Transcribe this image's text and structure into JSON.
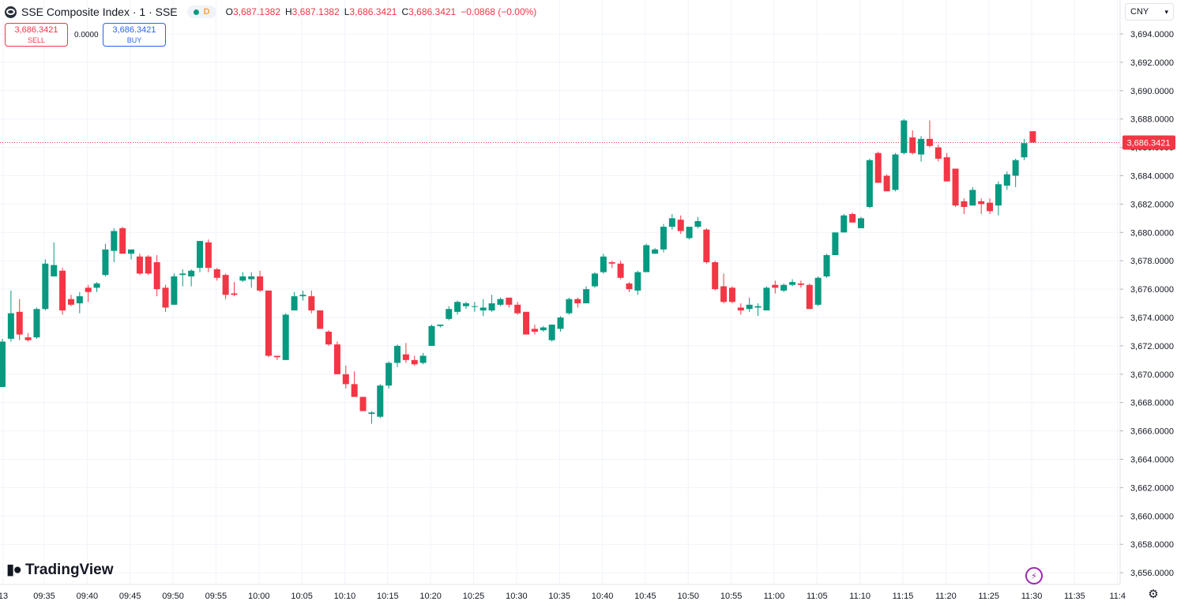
{
  "header": {
    "symbol_title": "SSE Composite Index · 1 · SSE",
    "badge": "D",
    "ohlc": {
      "o_label": "O",
      "o": "3,687.1382",
      "h_label": "H",
      "h": "3,687.1382",
      "l_label": "L",
      "l": "3,686.3421",
      "c_label": "C",
      "c": "3,686.3421",
      "change": "−0.0868 (−0.00%)"
    }
  },
  "trade": {
    "sell_price": "3,686.3421",
    "sell_label": "SELL",
    "spread": "0.0000",
    "buy_price": "3,686.3421",
    "buy_label": "BUY"
  },
  "currency": "CNY",
  "logo_text": "TradingView",
  "colors": {
    "up": "#089981",
    "down": "#f23645",
    "grid": "#f0f3fa",
    "price_line": "#f23645"
  },
  "icons": [
    "symbol-logo-icon",
    "chevron-down-icon",
    "bolt-icon",
    "gear-icon"
  ],
  "chart_data": {
    "type": "candlestick",
    "last_price": 3686.3421,
    "last_price_label": "3,686.3421",
    "y_ticks": [
      "3,694.0000",
      "3,692.0000",
      "3,690.0000",
      "3,688.0000",
      "3,686.0000",
      "3,684.0000",
      "3,682.0000",
      "3,680.0000",
      "3,678.0000",
      "3,676.0000",
      "3,674.0000",
      "3,672.0000",
      "3,670.0000",
      "3,668.0000",
      "3,666.0000",
      "3,664.0000",
      "3,662.0000",
      "3,660.0000",
      "3,658.0000",
      "3,656.0000"
    ],
    "x_ticks": [
      "13",
      "09:35",
      "09:40",
      "09:45",
      "09:50",
      "09:55",
      "10:00",
      "10:05",
      "10:10",
      "10:15",
      "10:20",
      "10:25",
      "10:30",
      "10:35",
      "10:40",
      "10:45",
      "10:50",
      "10:55",
      "11:00",
      "11:05",
      "11:10",
      "11:15",
      "11:20",
      "11:25",
      "11:30",
      "11:35",
      "11:4"
    ],
    "ylim": [
      3655.2,
      3696.2
    ],
    "candles": [
      {
        "t": "09:31",
        "o": 3669.1,
        "h": 3672.5,
        "l": 3669.1,
        "c": 3672.3
      },
      {
        "t": "09:32",
        "o": 3672.5,
        "h": 3675.9,
        "l": 3672.3,
        "c": 3674.3
      },
      {
        "t": "09:33",
        "o": 3674.4,
        "h": 3675.3,
        "l": 3672.4,
        "c": 3672.8
      },
      {
        "t": "09:34",
        "o": 3672.6,
        "h": 3672.9,
        "l": 3672.3,
        "c": 3672.4
      },
      {
        "t": "09:35",
        "o": 3672.6,
        "h": 3674.7,
        "l": 3672.5,
        "c": 3674.6
      },
      {
        "t": "09:36",
        "o": 3674.6,
        "h": 3678.1,
        "l": 3674.5,
        "c": 3677.8
      },
      {
        "t": "09:37",
        "o": 3676.9,
        "h": 3679.3,
        "l": 3676.9,
        "c": 3677.7
      },
      {
        "t": "09:38",
        "o": 3677.3,
        "h": 3677.5,
        "l": 3674.2,
        "c": 3674.5
      },
      {
        "t": "09:39",
        "o": 3675.3,
        "h": 3675.6,
        "l": 3674.8,
        "c": 3674.9
      },
      {
        "t": "09:40",
        "o": 3675.0,
        "h": 3675.8,
        "l": 3674.3,
        "c": 3675.5
      },
      {
        "t": "09:41",
        "o": 3676.1,
        "h": 3676.3,
        "l": 3675.1,
        "c": 3675.8
      },
      {
        "t": "09:42",
        "o": 3676.1,
        "h": 3676.5,
        "l": 3675.8,
        "c": 3676.4
      },
      {
        "t": "09:43",
        "o": 3677.0,
        "h": 3679.2,
        "l": 3676.9,
        "c": 3678.8
      },
      {
        "t": "09:44",
        "o": 3678.7,
        "h": 3680.3,
        "l": 3677.9,
        "c": 3680.1
      },
      {
        "t": "09:45",
        "o": 3680.3,
        "h": 3680.4,
        "l": 3678.5,
        "c": 3678.5
      },
      {
        "t": "09:46",
        "o": 3678.5,
        "h": 3678.7,
        "l": 3678.1,
        "c": 3678.8
      },
      {
        "t": "09:47",
        "o": 3678.3,
        "h": 3678.5,
        "l": 3677.0,
        "c": 3677.1
      },
      {
        "t": "09:48",
        "o": 3678.3,
        "h": 3678.4,
        "l": 3677.0,
        "c": 3677.1
      },
      {
        "t": "09:49",
        "o": 3677.9,
        "h": 3678.4,
        "l": 3675.5,
        "c": 3676.0
      },
      {
        "t": "09:50",
        "o": 3676.1,
        "h": 3676.3,
        "l": 3674.4,
        "c": 3674.7
      },
      {
        "t": "09:51",
        "o": 3674.9,
        "h": 3677.1,
        "l": 3674.9,
        "c": 3676.9
      },
      {
        "t": "09:52",
        "o": 3677.0,
        "h": 3677.4,
        "l": 3676.2,
        "c": 3677.1
      },
      {
        "t": "09:53",
        "o": 3676.9,
        "h": 3677.4,
        "l": 3676.2,
        "c": 3677.3
      },
      {
        "t": "09:54",
        "o": 3677.5,
        "h": 3679.4,
        "l": 3677.2,
        "c": 3679.4
      },
      {
        "t": "09:55",
        "o": 3679.3,
        "h": 3679.5,
        "l": 3677.2,
        "c": 3677.5
      },
      {
        "t": "09:56",
        "o": 3677.4,
        "h": 3677.5,
        "l": 3676.6,
        "c": 3676.8
      },
      {
        "t": "09:57",
        "o": 3677.0,
        "h": 3677.1,
        "l": 3675.3,
        "c": 3675.6
      },
      {
        "t": "09:58",
        "o": 3675.7,
        "h": 3676.5,
        "l": 3675.5,
        "c": 3675.6
      },
      {
        "t": "09:59",
        "o": 3676.6,
        "h": 3677.2,
        "l": 3676.5,
        "c": 3676.9
      },
      {
        "t": "10:00",
        "o": 3676.7,
        "h": 3677.2,
        "l": 3676.1,
        "c": 3676.9
      },
      {
        "t": "10:01",
        "o": 3676.9,
        "h": 3677.3,
        "l": 3675.8,
        "c": 3675.9
      },
      {
        "t": "10:02",
        "o": 3675.9,
        "h": 3675.9,
        "l": 3671.2,
        "c": 3671.3
      },
      {
        "t": "10:03",
        "o": 3671.3,
        "h": 3671.3,
        "l": 3671.0,
        "c": 3671.2
      },
      {
        "t": "10:04",
        "o": 3671.0,
        "h": 3674.3,
        "l": 3671.0,
        "c": 3674.2
      },
      {
        "t": "10:05",
        "o": 3674.5,
        "h": 3675.8,
        "l": 3674.5,
        "c": 3675.5
      },
      {
        "t": "10:06",
        "o": 3675.5,
        "h": 3675.9,
        "l": 3675.2,
        "c": 3675.6
      },
      {
        "t": "10:07",
        "o": 3675.5,
        "h": 3675.9,
        "l": 3674.3,
        "c": 3674.5
      },
      {
        "t": "10:08",
        "o": 3674.5,
        "h": 3674.5,
        "l": 3673.2,
        "c": 3673.2
      },
      {
        "t": "10:09",
        "o": 3673.0,
        "h": 3673.1,
        "l": 3672.0,
        "c": 3672.1
      },
      {
        "t": "10:10",
        "o": 3672.1,
        "h": 3672.3,
        "l": 3670.0,
        "c": 3670.0
      },
      {
        "t": "10:11",
        "o": 3670.0,
        "h": 3670.6,
        "l": 3669.0,
        "c": 3669.3
      },
      {
        "t": "10:12",
        "o": 3669.3,
        "h": 3670.2,
        "l": 3668.5,
        "c": 3668.4
      },
      {
        "t": "10:13",
        "o": 3668.4,
        "h": 3668.4,
        "l": 3667.4,
        "c": 3667.4
      },
      {
        "t": "10:14",
        "o": 3667.2,
        "h": 3667.4,
        "l": 3666.5,
        "c": 3667.3
      },
      {
        "t": "10:15",
        "o": 3667.0,
        "h": 3669.3,
        "l": 3666.9,
        "c": 3669.2
      },
      {
        "t": "10:16",
        "o": 3669.2,
        "h": 3670.9,
        "l": 3669.0,
        "c": 3670.8
      },
      {
        "t": "10:17",
        "o": 3670.8,
        "h": 3672.1,
        "l": 3670.5,
        "c": 3672.0
      },
      {
        "t": "10:18",
        "o": 3671.4,
        "h": 3672.2,
        "l": 3670.8,
        "c": 3671.0
      },
      {
        "t": "10:19",
        "o": 3671.0,
        "h": 3671.3,
        "l": 3670.6,
        "c": 3670.7
      },
      {
        "t": "10:20",
        "o": 3670.8,
        "h": 3671.5,
        "l": 3670.7,
        "c": 3671.3
      },
      {
        "t": "10:21",
        "o": 3672.0,
        "h": 3673.5,
        "l": 3672.0,
        "c": 3673.4
      },
      {
        "t": "10:22",
        "o": 3673.4,
        "h": 3673.5,
        "l": 3673.3,
        "c": 3673.5
      },
      {
        "t": "10:23",
        "o": 3673.9,
        "h": 3674.8,
        "l": 3673.8,
        "c": 3674.6
      },
      {
        "t": "10:24",
        "o": 3674.4,
        "h": 3675.2,
        "l": 3674.2,
        "c": 3675.1
      },
      {
        "t": "10:25",
        "o": 3674.8,
        "h": 3675.1,
        "l": 3674.6,
        "c": 3675.0
      },
      {
        "t": "10:26",
        "o": 3674.8,
        "h": 3675.1,
        "l": 3674.4,
        "c": 3674.8
      },
      {
        "t": "10:27",
        "o": 3674.5,
        "h": 3675.3,
        "l": 3674.1,
        "c": 3674.7
      },
      {
        "t": "10:28",
        "o": 3674.5,
        "h": 3675.6,
        "l": 3674.4,
        "c": 3675.0
      },
      {
        "t": "10:29",
        "o": 3674.9,
        "h": 3675.4,
        "l": 3674.8,
        "c": 3675.3
      },
      {
        "t": "10:30",
        "o": 3675.4,
        "h": 3675.4,
        "l": 3674.7,
        "c": 3674.9
      },
      {
        "t": "10:31",
        "o": 3674.9,
        "h": 3675.1,
        "l": 3674.2,
        "c": 3674.3
      },
      {
        "t": "10:32",
        "o": 3674.4,
        "h": 3674.4,
        "l": 3672.8,
        "c": 3672.8
      },
      {
        "t": "10:33",
        "o": 3673.2,
        "h": 3673.5,
        "l": 3672.8,
        "c": 3673.0
      },
      {
        "t": "10:34",
        "o": 3673.1,
        "h": 3673.4,
        "l": 3673.0,
        "c": 3673.3
      },
      {
        "t": "10:35",
        "o": 3672.4,
        "h": 3673.4,
        "l": 3672.3,
        "c": 3673.5
      },
      {
        "t": "10:36",
        "o": 3673.2,
        "h": 3674.1,
        "l": 3673.0,
        "c": 3674.0
      },
      {
        "t": "10:37",
        "o": 3674.3,
        "h": 3675.4,
        "l": 3674.2,
        "c": 3675.3
      },
      {
        "t": "10:38",
        "o": 3675.3,
        "h": 3675.4,
        "l": 3674.7,
        "c": 3675.0
      },
      {
        "t": "10:39",
        "o": 3675.0,
        "h": 3676.2,
        "l": 3675.0,
        "c": 3676.0
      },
      {
        "t": "10:40",
        "o": 3676.2,
        "h": 3677.2,
        "l": 3676.1,
        "c": 3677.1
      },
      {
        "t": "10:41",
        "o": 3677.2,
        "h": 3678.5,
        "l": 3677.1,
        "c": 3678.3
      },
      {
        "t": "10:42",
        "o": 3677.9,
        "h": 3678.0,
        "l": 3677.5,
        "c": 3677.8
      },
      {
        "t": "10:43",
        "o": 3677.8,
        "h": 3678.0,
        "l": 3676.7,
        "c": 3676.8
      },
      {
        "t": "10:44",
        "o": 3676.4,
        "h": 3676.5,
        "l": 3675.8,
        "c": 3676.0
      },
      {
        "t": "10:45",
        "o": 3675.9,
        "h": 3677.3,
        "l": 3675.6,
        "c": 3677.2
      },
      {
        "t": "10:46",
        "o": 3677.2,
        "h": 3679.2,
        "l": 3677.2,
        "c": 3679.1
      },
      {
        "t": "10:47",
        "o": 3678.5,
        "h": 3678.9,
        "l": 3678.5,
        "c": 3678.8
      },
      {
        "t": "10:48",
        "o": 3678.8,
        "h": 3680.6,
        "l": 3678.6,
        "c": 3680.4
      },
      {
        "t": "10:49",
        "o": 3680.4,
        "h": 3681.3,
        "l": 3680.2,
        "c": 3681.0
      },
      {
        "t": "10:50",
        "o": 3680.9,
        "h": 3681.2,
        "l": 3679.9,
        "c": 3680.1
      },
      {
        "t": "10:51",
        "o": 3679.6,
        "h": 3680.3,
        "l": 3679.5,
        "c": 3680.4
      },
      {
        "t": "10:52",
        "o": 3680.4,
        "h": 3681.1,
        "l": 3680.3,
        "c": 3680.8
      },
      {
        "t": "10:53",
        "o": 3680.2,
        "h": 3680.3,
        "l": 3677.8,
        "c": 3677.9
      },
      {
        "t": "10:54",
        "o": 3677.9,
        "h": 3678.0,
        "l": 3675.9,
        "c": 3676.0
      },
      {
        "t": "10:55",
        "o": 3676.2,
        "h": 3677.1,
        "l": 3675.0,
        "c": 3675.1
      },
      {
        "t": "10:56",
        "o": 3676.1,
        "h": 3676.2,
        "l": 3675.0,
        "c": 3675.1
      },
      {
        "t": "10:57",
        "o": 3674.7,
        "h": 3675.0,
        "l": 3674.2,
        "c": 3674.5
      },
      {
        "t": "10:58",
        "o": 3674.6,
        "h": 3675.4,
        "l": 3674.4,
        "c": 3674.9
      },
      {
        "t": "10:59",
        "o": 3674.7,
        "h": 3675.0,
        "l": 3674.1,
        "c": 3674.8
      },
      {
        "t": "11:00",
        "o": 3674.5,
        "h": 3676.2,
        "l": 3674.5,
        "c": 3676.1
      },
      {
        "t": "11:01",
        "o": 3676.3,
        "h": 3676.6,
        "l": 3675.7,
        "c": 3676.1
      },
      {
        "t": "11:02",
        "o": 3675.9,
        "h": 3676.4,
        "l": 3675.8,
        "c": 3676.3
      },
      {
        "t": "11:03",
        "o": 3676.3,
        "h": 3676.7,
        "l": 3676.2,
        "c": 3676.5
      },
      {
        "t": "11:04",
        "o": 3676.4,
        "h": 3676.6,
        "l": 3676.1,
        "c": 3676.3
      },
      {
        "t": "11:05",
        "o": 3676.3,
        "h": 3676.4,
        "l": 3674.6,
        "c": 3674.6
      },
      {
        "t": "11:06",
        "o": 3674.9,
        "h": 3676.9,
        "l": 3674.8,
        "c": 3676.8
      },
      {
        "t": "11:07",
        "o": 3676.9,
        "h": 3678.5,
        "l": 3676.8,
        "c": 3678.4
      },
      {
        "t": "11:08",
        "o": 3678.4,
        "h": 3680.0,
        "l": 3678.4,
        "c": 3680.0
      },
      {
        "t": "11:09",
        "o": 3680.0,
        "h": 3681.3,
        "l": 3680.0,
        "c": 3681.2
      },
      {
        "t": "11:10",
        "o": 3681.3,
        "h": 3681.4,
        "l": 3680.7,
        "c": 3680.7
      },
      {
        "t": "11:11",
        "o": 3680.3,
        "h": 3681.1,
        "l": 3680.3,
        "c": 3681.0
      },
      {
        "t": "11:12",
        "o": 3681.8,
        "h": 3685.2,
        "l": 3681.7,
        "c": 3685.1
      },
      {
        "t": "11:13",
        "o": 3685.6,
        "h": 3685.7,
        "l": 3683.5,
        "c": 3683.5
      },
      {
        "t": "11:14",
        "o": 3684.0,
        "h": 3684.1,
        "l": 3682.9,
        "c": 3682.9
      },
      {
        "t": "11:15",
        "o": 3683.0,
        "h": 3685.6,
        "l": 3682.9,
        "c": 3685.5
      },
      {
        "t": "11:16",
        "o": 3685.6,
        "h": 3688.0,
        "l": 3685.5,
        "c": 3687.9
      },
      {
        "t": "11:17",
        "o": 3686.7,
        "h": 3687.2,
        "l": 3685.5,
        "c": 3685.6
      },
      {
        "t": "11:18",
        "o": 3685.5,
        "h": 3686.8,
        "l": 3685.0,
        "c": 3686.6
      },
      {
        "t": "11:19",
        "o": 3686.6,
        "h": 3687.9,
        "l": 3686.0,
        "c": 3686.1
      },
      {
        "t": "11:20",
        "o": 3686.0,
        "h": 3686.2,
        "l": 3685.0,
        "c": 3685.2
      },
      {
        "t": "11:21",
        "o": 3685.3,
        "h": 3685.6,
        "l": 3683.6,
        "c": 3683.6
      },
      {
        "t": "11:22",
        "o": 3684.5,
        "h": 3684.5,
        "l": 3681.8,
        "c": 3681.9
      },
      {
        "t": "11:23",
        "o": 3682.2,
        "h": 3682.4,
        "l": 3681.3,
        "c": 3681.8
      },
      {
        "t": "11:24",
        "o": 3681.9,
        "h": 3683.2,
        "l": 3681.9,
        "c": 3683.0
      },
      {
        "t": "11:25",
        "o": 3682.2,
        "h": 3682.4,
        "l": 3681.3,
        "c": 3682.0
      },
      {
        "t": "11:26",
        "o": 3682.1,
        "h": 3682.4,
        "l": 3681.3,
        "c": 3681.5
      },
      {
        "t": "11:27",
        "o": 3681.9,
        "h": 3683.6,
        "l": 3681.2,
        "c": 3683.4
      },
      {
        "t": "11:28",
        "o": 3683.3,
        "h": 3684.3,
        "l": 3683.0,
        "c": 3684.1
      },
      {
        "t": "11:29",
        "o": 3684.0,
        "h": 3685.2,
        "l": 3683.2,
        "c": 3685.1
      },
      {
        "t": "11:30",
        "o": 3685.3,
        "h": 3686.6,
        "l": 3685.1,
        "c": 3686.3
      },
      {
        "t": "11:30b",
        "o": 3687.1382,
        "h": 3687.1382,
        "l": 3686.3421,
        "c": 3686.3421
      }
    ]
  }
}
